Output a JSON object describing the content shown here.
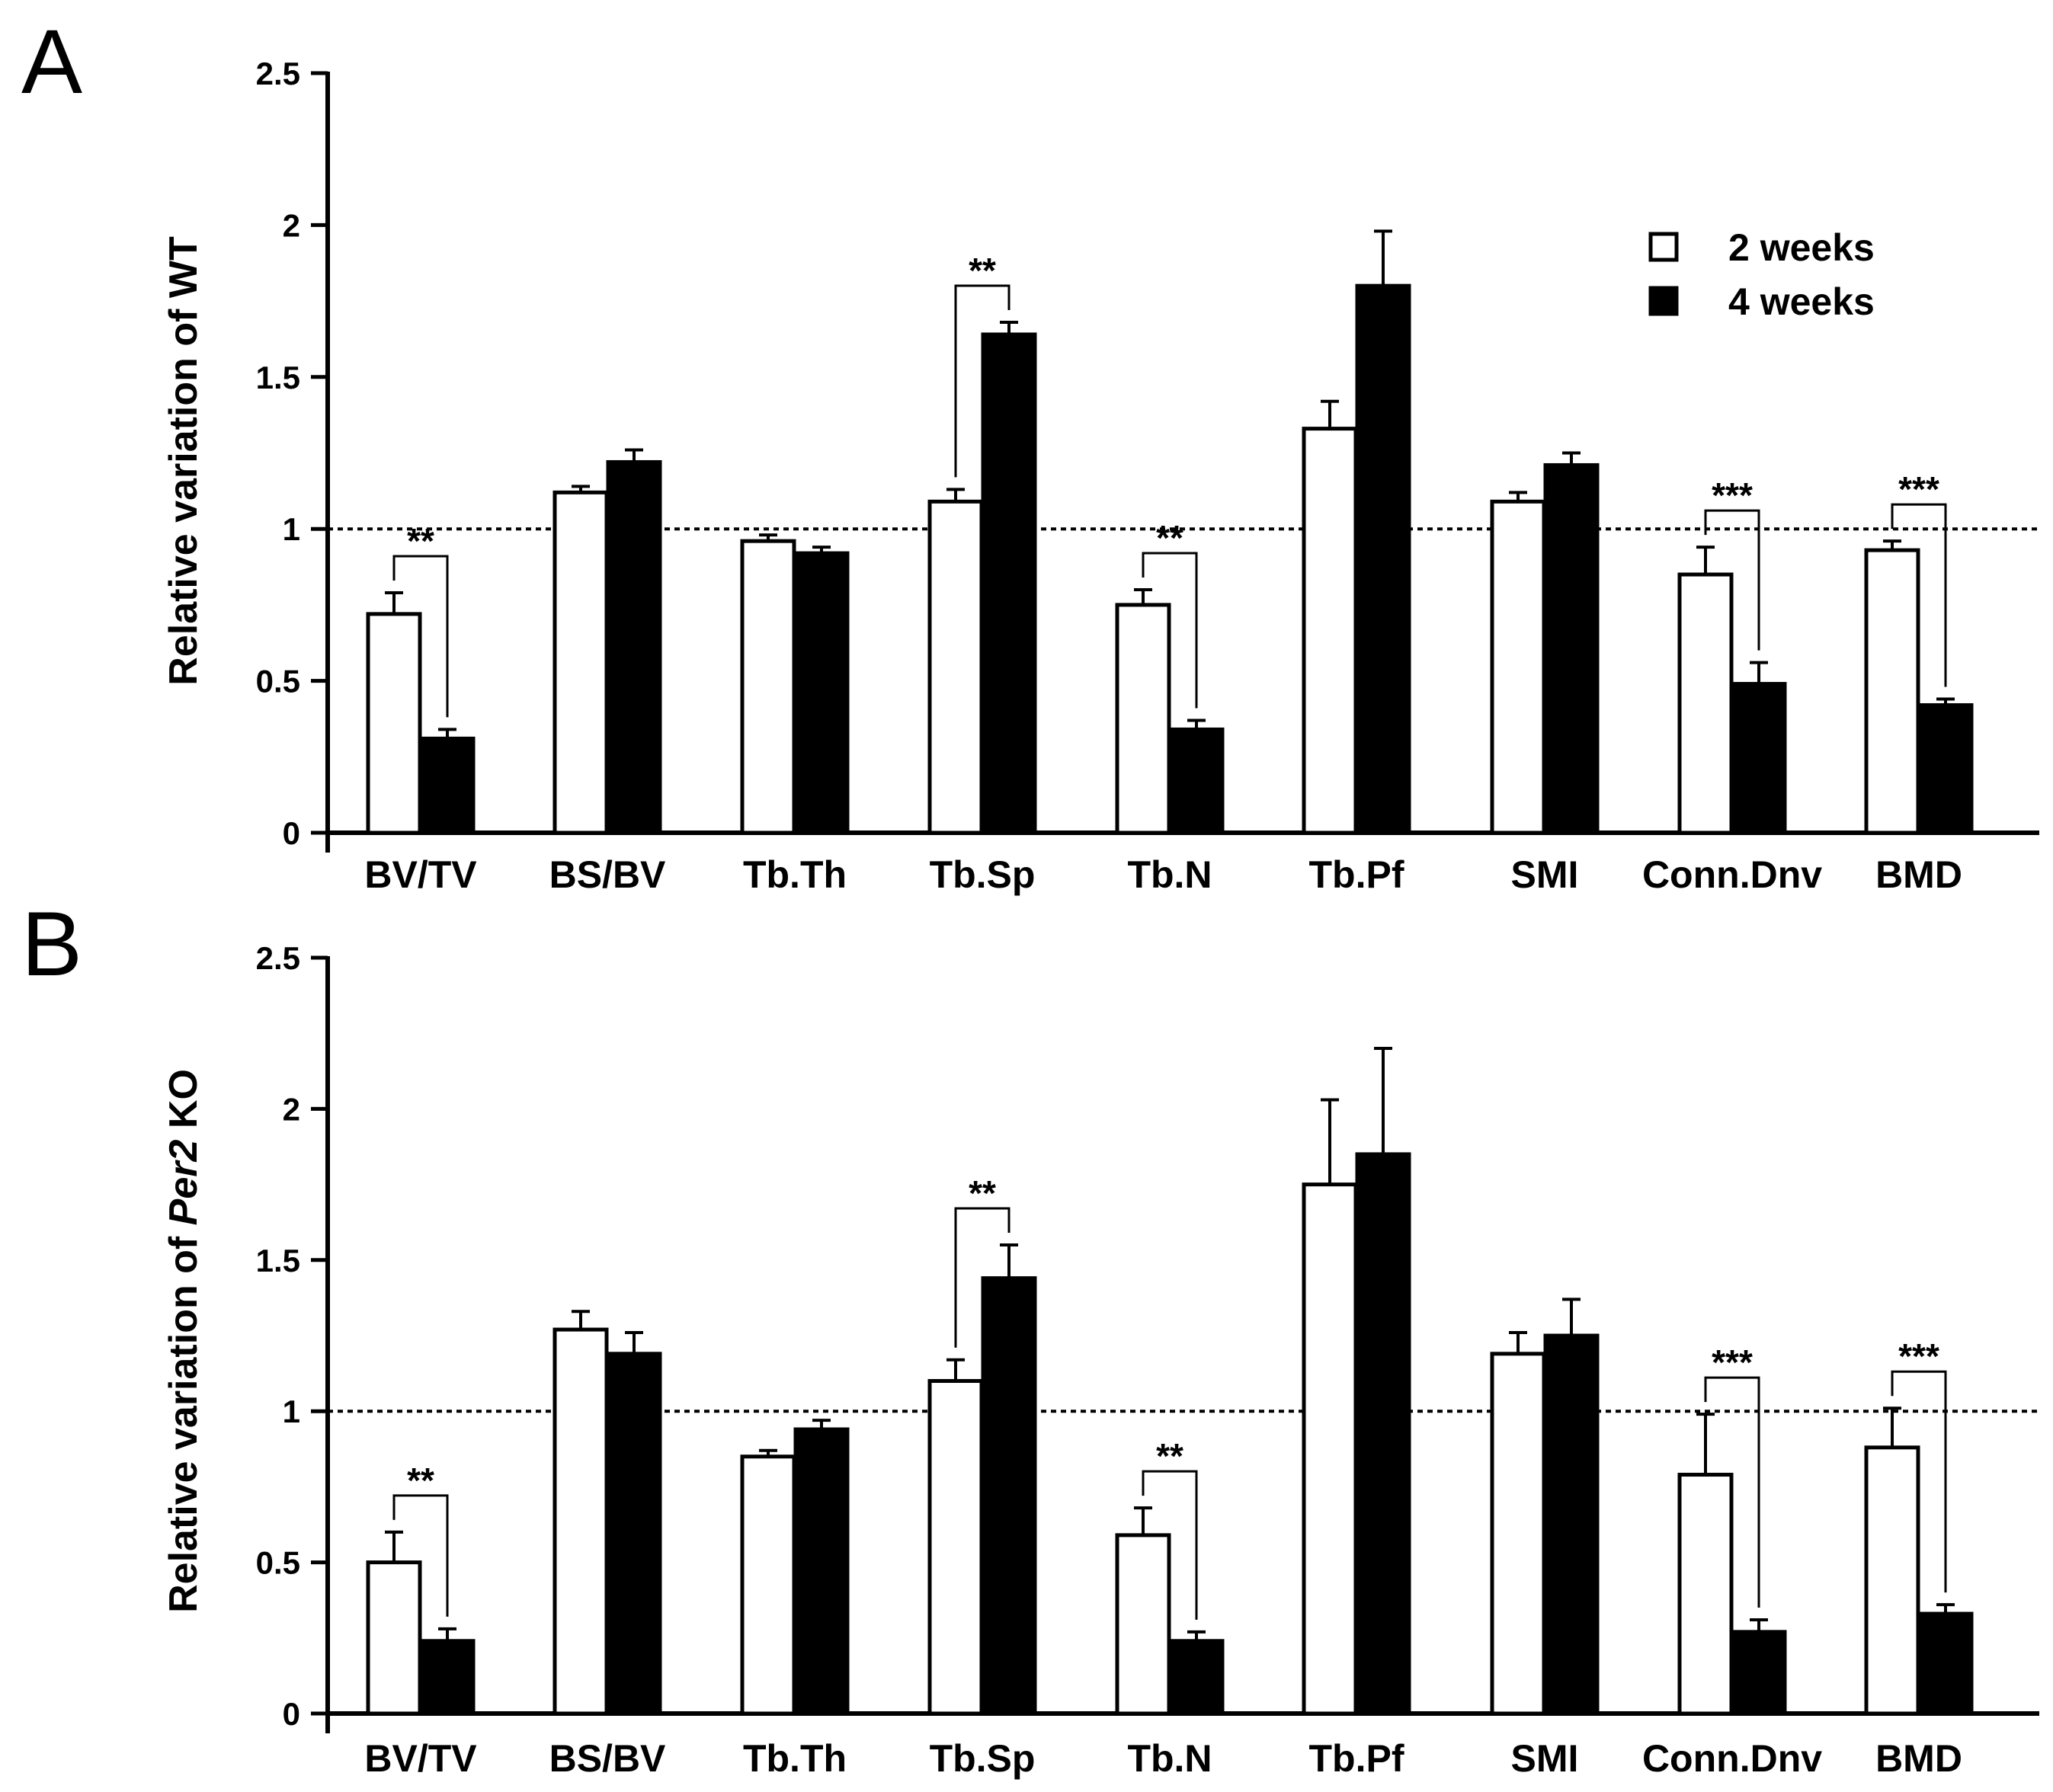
{
  "chart_data": [
    {
      "panel": "A",
      "type": "bar",
      "ylabel": "Relative variation of WT",
      "ylim": [
        0,
        2.5
      ],
      "yticks": [
        "0",
        "0.5",
        "1",
        "1.5",
        "2",
        "2.5"
      ],
      "reference_line": 1,
      "categories": [
        "BV/TV",
        "BS/BV",
        "Tb.Th",
        "Tb.Sp",
        "Tb.N",
        "Tb.Pf",
        "SMI",
        "Conn.Dnv",
        "BMD"
      ],
      "series": [
        {
          "name": "2 weeks",
          "fill": "#ffffff",
          "values": [
            0.72,
            1.12,
            0.96,
            1.09,
            0.75,
            1.33,
            1.09,
            0.85,
            0.93
          ],
          "errors": [
            0.07,
            0.02,
            0.02,
            0.04,
            0.05,
            0.09,
            0.03,
            0.09,
            0.03
          ]
        },
        {
          "name": "4 weeks",
          "fill": "#000000",
          "values": [
            0.31,
            1.22,
            0.92,
            1.64,
            0.34,
            1.8,
            1.21,
            0.49,
            0.42
          ],
          "errors": [
            0.03,
            0.04,
            0.02,
            0.04,
            0.03,
            0.18,
            0.04,
            0.07,
            0.02
          ]
        }
      ],
      "significance": [
        {
          "category": "BV/TV",
          "label": "**"
        },
        {
          "category": "Tb.Sp",
          "label": "**"
        },
        {
          "category": "Tb.N",
          "label": "**"
        },
        {
          "category": "Conn.Dnv",
          "label": "***"
        },
        {
          "category": "BMD",
          "label": "***"
        }
      ]
    },
    {
      "panel": "B",
      "type": "bar",
      "ylabel_prefix": "Relative variation of ",
      "ylabel_italic": "Per2",
      "ylabel_suffix": " KO",
      "ylim": [
        0,
        2.5
      ],
      "yticks": [
        "0",
        "0.5",
        "1",
        "1.5",
        "2",
        "2.5"
      ],
      "reference_line": 1,
      "categories": [
        "BV/TV",
        "BS/BV",
        "Tb.Th",
        "Tb.Sp",
        "Tb.N",
        "Tb.Pf",
        "SMI",
        "Conn.Dnv",
        "BMD"
      ],
      "series": [
        {
          "name": "2 weeks",
          "fill": "#ffffff",
          "values": [
            0.5,
            1.27,
            0.85,
            1.1,
            0.59,
            1.75,
            1.19,
            0.79,
            0.88
          ],
          "errors": [
            0.1,
            0.06,
            0.02,
            0.07,
            0.09,
            0.28,
            0.07,
            0.2,
            0.13
          ]
        },
        {
          "name": "4 weeks",
          "fill": "#000000",
          "values": [
            0.24,
            1.19,
            0.94,
            1.44,
            0.24,
            1.85,
            1.25,
            0.27,
            0.33
          ],
          "errors": [
            0.04,
            0.07,
            0.03,
            0.11,
            0.03,
            0.35,
            0.12,
            0.04,
            0.03
          ]
        }
      ],
      "significance": [
        {
          "category": "BV/TV",
          "label": "**"
        },
        {
          "category": "Tb.Sp",
          "label": "**"
        },
        {
          "category": "Tb.N",
          "label": "**"
        },
        {
          "category": "Conn.Dnv",
          "label": "***"
        },
        {
          "category": "BMD",
          "label": "***"
        }
      ]
    }
  ],
  "legend": {
    "placement": "top-right",
    "entries": [
      {
        "label": "2 weeks",
        "fill": "#ffffff"
      },
      {
        "label": "4 weeks",
        "fill": "#000000"
      }
    ]
  }
}
